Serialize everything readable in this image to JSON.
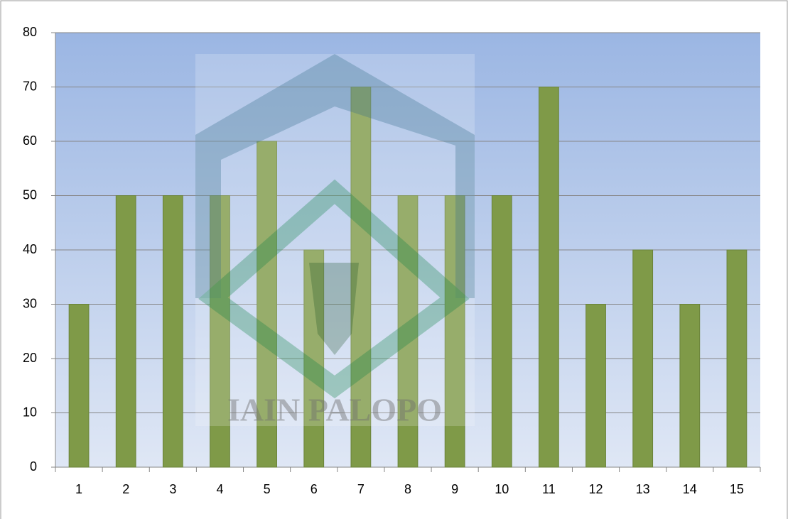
{
  "chart_data": {
    "type": "bar",
    "categories": [
      "1",
      "2",
      "3",
      "4",
      "5",
      "6",
      "7",
      "8",
      "9",
      "10",
      "11",
      "12",
      "13",
      "14",
      "15"
    ],
    "values": [
      30,
      50,
      50,
      50,
      60,
      40,
      70,
      50,
      50,
      50,
      70,
      30,
      40,
      30,
      40
    ],
    "color": "#7f9a48",
    "ylim": [
      0,
      80
    ],
    "yticks": [
      0,
      10,
      20,
      30,
      40,
      50,
      60,
      70,
      80
    ],
    "grid": true,
    "watermark": "IAIN PALOPO"
  }
}
